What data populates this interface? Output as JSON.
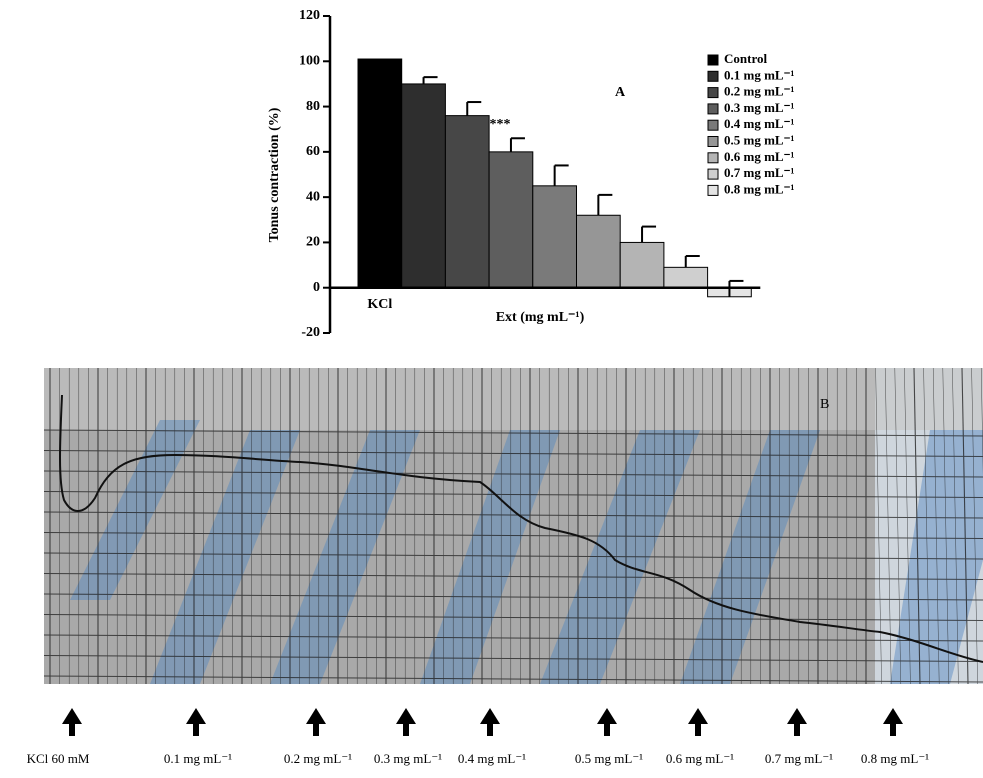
{
  "chart_data": {
    "type": "bar",
    "panel_label": "A",
    "y_label": "Tonus contraction (%)",
    "x_label": "Ext (mg mL⁻¹)",
    "annotation": "***",
    "categories": [
      "KCl",
      null,
      null,
      null,
      null,
      null,
      null,
      null,
      null
    ],
    "values": [
      101,
      90,
      76,
      60,
      45,
      32,
      20,
      9,
      -4
    ],
    "errors": [
      0,
      3,
      6,
      6,
      9,
      9,
      7,
      5,
      7
    ],
    "colors": [
      "#000000",
      "#2e2e2e",
      "#474747",
      "#5e5e5e",
      "#7a7a7a",
      "#969696",
      "#b4b4b4",
      "#cfcfcf",
      "#e4e4e4"
    ],
    "legend": [
      "Control",
      "0.1 mg mL⁻¹",
      "0.2 mg mL⁻¹",
      "0.3 mg mL⁻¹",
      "0.4 mg mL⁻¹",
      "0.5 mg mL⁻¹",
      "0.6 mg mL⁻¹",
      "0.7 mg mL⁻¹",
      "0.8 mg mL⁻¹"
    ],
    "ylim": [
      -20,
      120
    ],
    "yticks": [
      -20,
      0,
      20,
      40,
      60,
      80,
      100,
      120
    ]
  },
  "panel_b": {
    "label": "B",
    "arrow_labels": [
      "KCl 60 mM",
      "0.1 mg mL⁻¹",
      "0.2 mg mL⁻¹",
      "0.3 mg mL⁻¹",
      "0.4 mg mL⁻¹",
      "0.5 mg mL⁻¹",
      "0.6 mg mL⁻¹",
      "0.7 mg mL⁻¹",
      "0.8 mg mL⁻¹"
    ]
  }
}
